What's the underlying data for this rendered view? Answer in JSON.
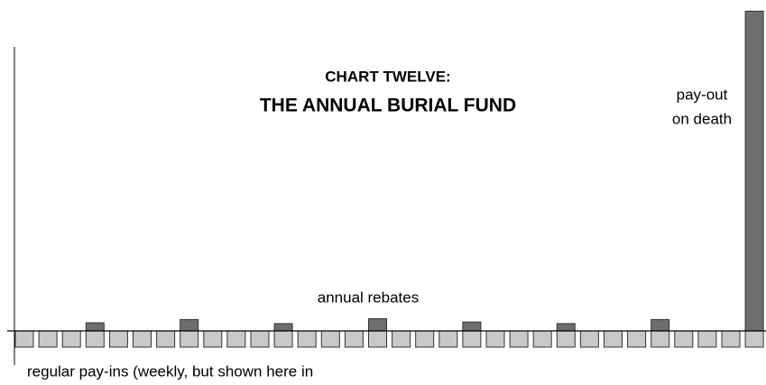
{
  "chart_data": {
    "type": "bar",
    "title": "CHART TWELVE:",
    "subtitle": "THE ANNUAL BURIAL FUND",
    "categories": [
      null,
      null,
      null,
      null,
      null,
      null,
      null,
      null,
      null,
      null,
      null,
      null,
      null,
      null,
      null,
      null,
      null,
      null,
      null,
      null,
      null,
      null,
      null,
      null,
      null,
      null,
      null,
      null,
      null,
      null,
      null,
      null
    ],
    "series": [
      {
        "color": "#c8c8c8",
        "values": [
          -1,
          -1,
          -1,
          -1,
          -1,
          -1,
          -1,
          -1,
          -1,
          -1,
          -1,
          -1,
          -1,
          -1,
          -1,
          -1,
          -1,
          -1,
          -1,
          -1,
          -1,
          -1,
          -1,
          -1,
          -1,
          -1,
          -1,
          -1,
          -1,
          -1,
          -1,
          -1
        ]
      },
      {
        "color": "#6e6e6e",
        "values": [
          null,
          null,
          null,
          0.5,
          null,
          null,
          null,
          0.7,
          null,
          null,
          null,
          0.45,
          null,
          null,
          null,
          0.75,
          null,
          null,
          null,
          0.55,
          null,
          null,
          null,
          0.45,
          null,
          null,
          null,
          0.7,
          null,
          null,
          null,
          null
        ]
      },
      {
        "color": "#6e6e6e",
        "values": [
          null,
          null,
          null,
          null,
          null,
          null,
          null,
          null,
          null,
          null,
          null,
          null,
          null,
          null,
          null,
          null,
          null,
          null,
          null,
          null,
          null,
          null,
          null,
          null,
          null,
          null,
          null,
          null,
          null,
          null,
          null,
          19.7
        ]
      }
    ],
    "ylim": [
      -2,
      20
    ],
    "annotations": [
      "annual rebates",
      "pay-out",
      "on death",
      "regular pay-ins (weekly, but shown here in"
    ]
  }
}
